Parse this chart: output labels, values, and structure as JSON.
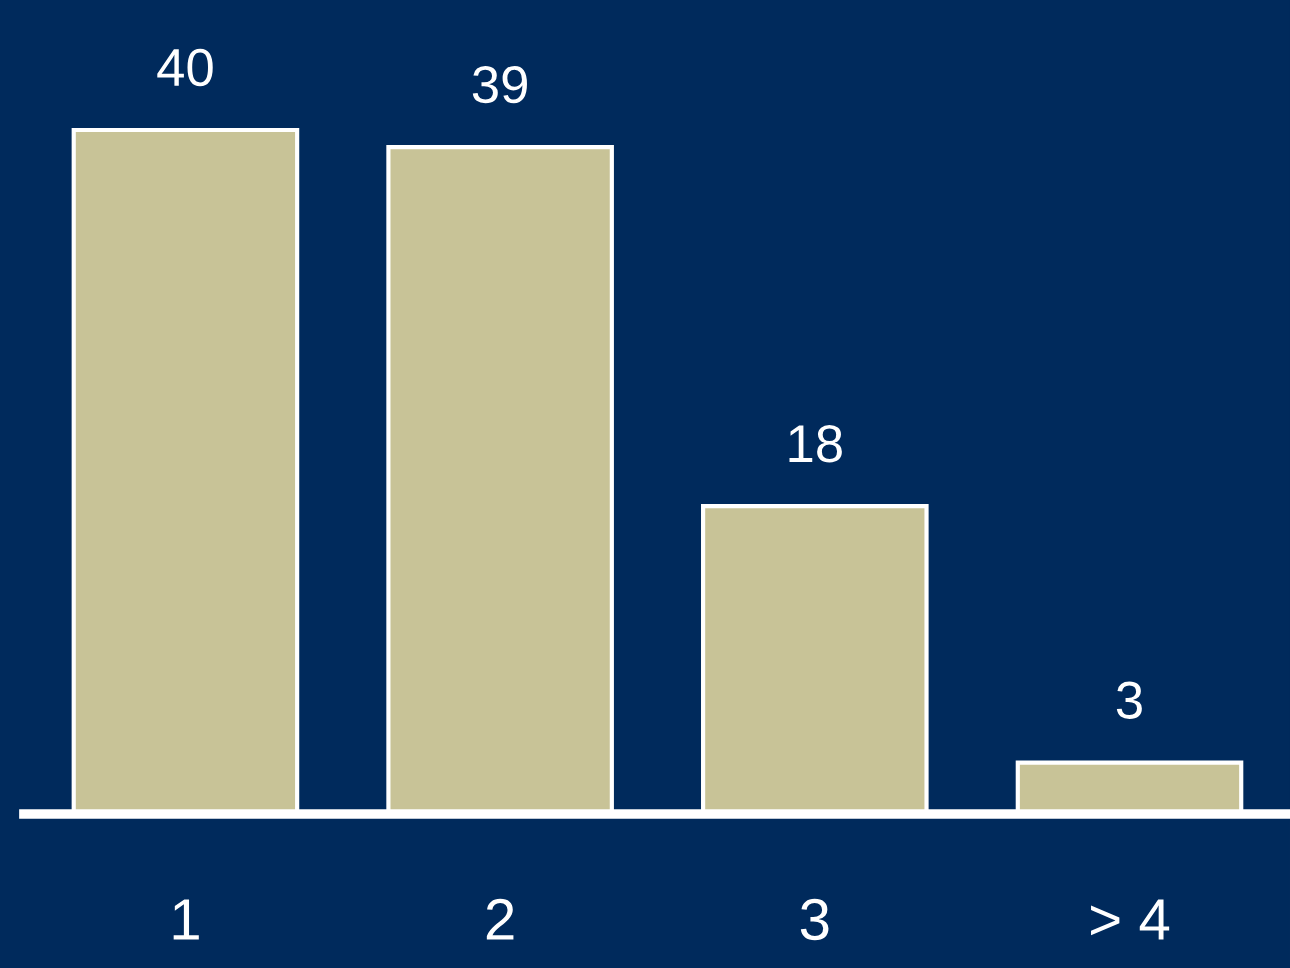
{
  "chart_data": {
    "type": "bar",
    "categories": [
      "1",
      "2",
      "3",
      "> 4"
    ],
    "values": [
      40,
      39,
      18,
      3
    ],
    "color": "#c8c397",
    "data_labels": true,
    "grid": false,
    "legend": false
  }
}
